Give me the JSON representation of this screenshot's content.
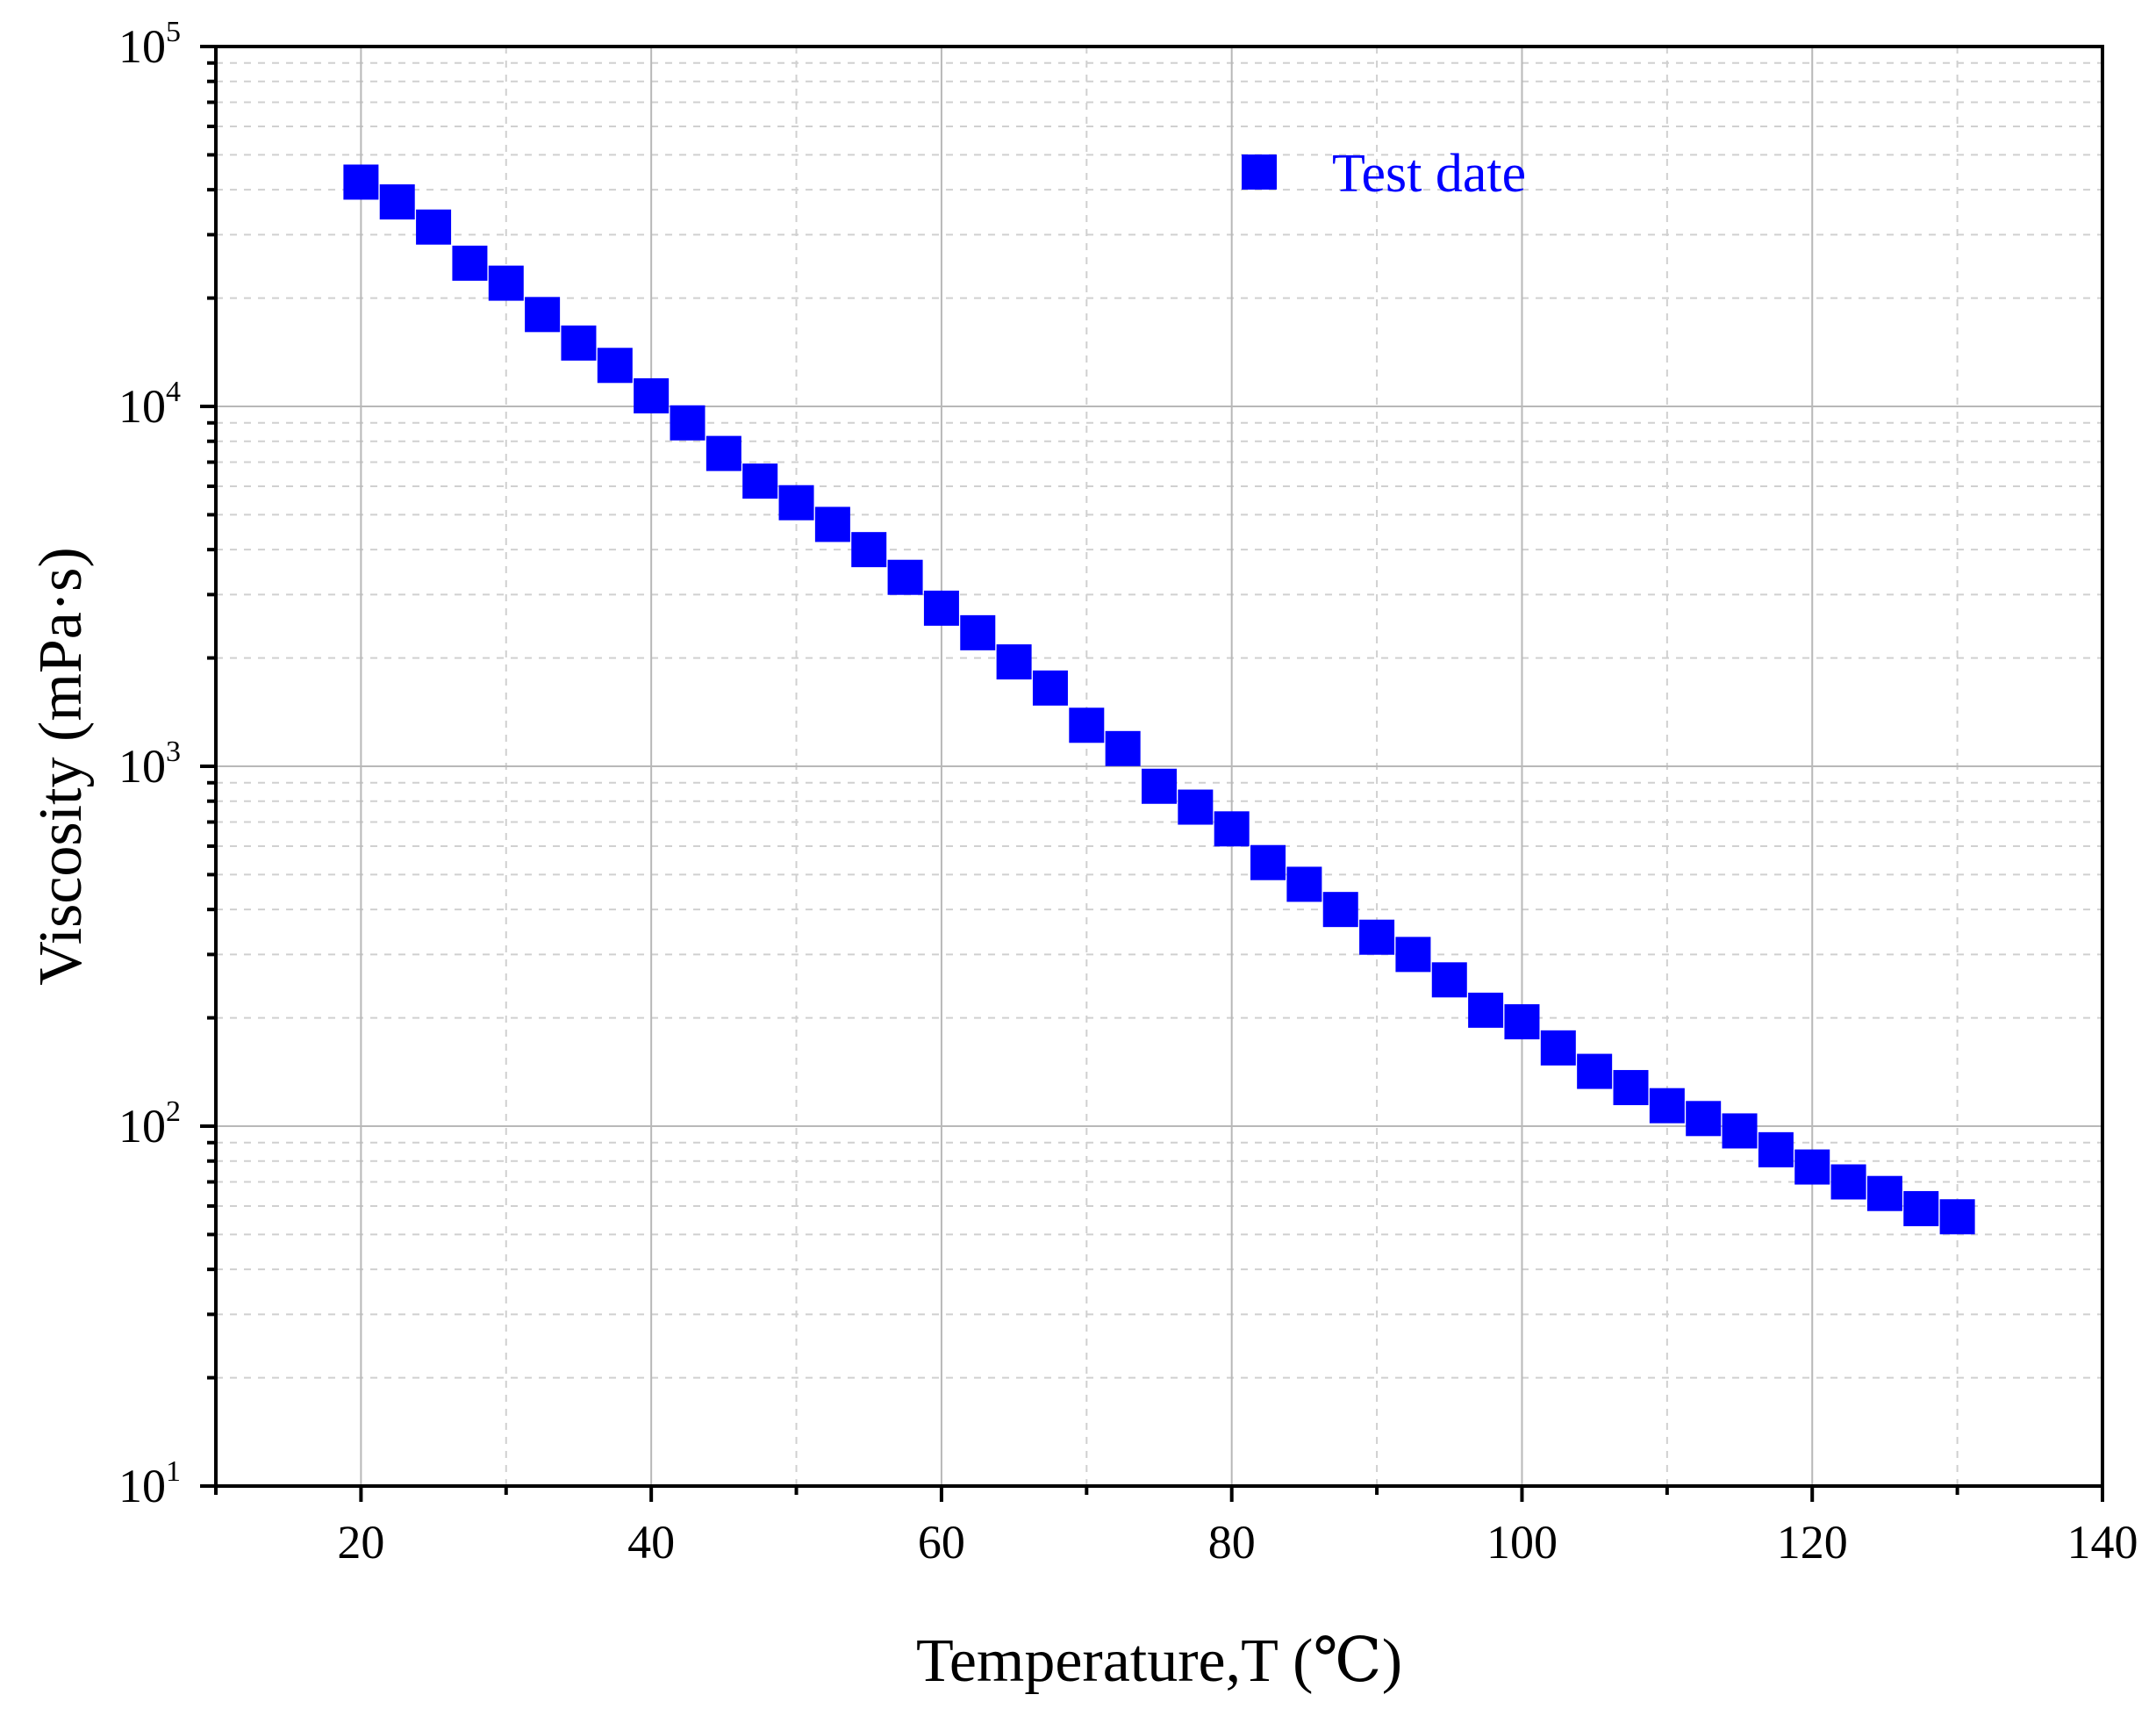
{
  "chart_data": {
    "type": "scatter",
    "xlabel": "Temperature,T (℃)",
    "ylabel": "Viscosity (mPa·s)",
    "xlim": [
      10,
      140
    ],
    "ylim": [
      10,
      100000
    ],
    "yscale": "log",
    "xticks": [
      20,
      40,
      60,
      80,
      100,
      120,
      140
    ],
    "xtick_labels": [
      "20",
      "40",
      "60",
      "80",
      "100",
      "120",
      "140"
    ],
    "yticks": [
      10,
      100,
      1000,
      10000,
      100000
    ],
    "ytick_labels": [
      {
        "base": "10",
        "exp": "1"
      },
      {
        "base": "10",
        "exp": "2"
      },
      {
        "base": "10",
        "exp": "3"
      },
      {
        "base": "10",
        "exp": "4"
      },
      {
        "base": "10",
        "exp": "5"
      }
    ],
    "grid": true,
    "legend_position": "top-right",
    "series": [
      {
        "name": "Test date",
        "color": "#0000ff",
        "marker": "square",
        "x": [
          20,
          22.5,
          25,
          27.5,
          30,
          32.5,
          35,
          37.5,
          40,
          42.5,
          45,
          47.5,
          50,
          52.5,
          55,
          57.5,
          60,
          62.5,
          65,
          67.5,
          70,
          72.5,
          75,
          77.5,
          80,
          82.5,
          85,
          87.5,
          90,
          92.5,
          95,
          97.5,
          100,
          102.5,
          105,
          107.5,
          110,
          112.5,
          115,
          117.5,
          120,
          122.5,
          125,
          127.5,
          130
        ],
        "y": [
          42000,
          37000,
          31500,
          25000,
          22000,
          18000,
          15000,
          13000,
          10700,
          9000,
          7400,
          6200,
          5400,
          4700,
          4000,
          3350,
          2750,
          2350,
          1950,
          1650,
          1300,
          1120,
          880,
          770,
          670,
          540,
          470,
          400,
          335,
          300,
          255,
          210,
          195,
          165,
          142,
          128,
          114,
          105,
          97,
          86,
          77,
          70,
          65,
          59,
          56
        ]
      }
    ]
  }
}
